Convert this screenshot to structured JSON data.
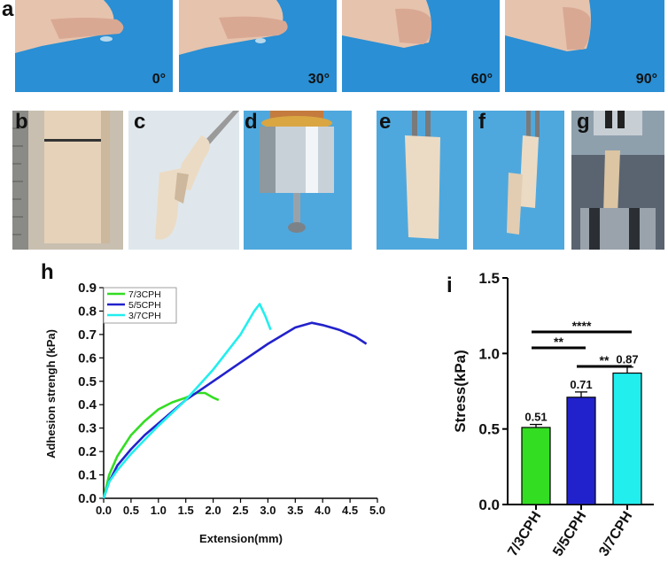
{
  "panels": {
    "a": {
      "label": "a",
      "angles": [
        "0°",
        "30°",
        "60°",
        "90°"
      ]
    },
    "b": {
      "label": "b"
    },
    "c": {
      "label": "c"
    },
    "d": {
      "label": "d"
    },
    "e": {
      "label": "e"
    },
    "f": {
      "label": "f"
    },
    "g": {
      "label": "g"
    },
    "h": {
      "label": "h"
    },
    "i": {
      "label": "i"
    }
  },
  "colors": {
    "series_green": "#33dd22",
    "series_blue": "#2222cc",
    "series_cyan": "#22eeee",
    "photo_blue": "#2a8fd4"
  },
  "chart_data": [
    {
      "type": "line",
      "xlabel": "Extension(mm)",
      "ylabel": "Adhesion strengh (kPa)",
      "xlim": [
        0,
        5.0
      ],
      "ylim": [
        0,
        0.9
      ],
      "xticks": [
        "0.0",
        "0.5",
        "1.0",
        "1.5",
        "2.0",
        "2.5",
        "3.0",
        "3.5",
        "4.0",
        "4.5",
        "5.0"
      ],
      "yticks": [
        "0.0",
        "0.1",
        "0.2",
        "0.3",
        "0.4",
        "0.5",
        "0.6",
        "0.7",
        "0.8",
        "0.9"
      ],
      "legend_position": "top-left",
      "series": [
        {
          "name": "7/3CPH",
          "color": "#33dd22",
          "x": [
            0,
            0.1,
            0.25,
            0.5,
            0.75,
            1.0,
            1.25,
            1.5,
            1.7,
            1.85,
            2.0,
            2.1
          ],
          "y": [
            0,
            0.1,
            0.18,
            0.27,
            0.33,
            0.38,
            0.41,
            0.43,
            0.45,
            0.45,
            0.43,
            0.42
          ]
        },
        {
          "name": "5/5CPH",
          "color": "#2222cc",
          "x": [
            0,
            0.1,
            0.25,
            0.5,
            0.75,
            1.0,
            1.5,
            2.0,
            2.5,
            3.0,
            3.5,
            3.8,
            4.0,
            4.3,
            4.6,
            4.8
          ],
          "y": [
            0,
            0.07,
            0.14,
            0.21,
            0.27,
            0.32,
            0.42,
            0.5,
            0.58,
            0.66,
            0.73,
            0.75,
            0.74,
            0.72,
            0.69,
            0.66
          ]
        },
        {
          "name": "3/7CPH",
          "color": "#22eeee",
          "x": [
            0,
            0.1,
            0.25,
            0.5,
            0.75,
            1.0,
            1.5,
            2.0,
            2.5,
            2.75,
            2.85,
            2.95,
            3.05
          ],
          "y": [
            0,
            0.07,
            0.12,
            0.19,
            0.25,
            0.31,
            0.42,
            0.55,
            0.7,
            0.8,
            0.83,
            0.78,
            0.72
          ]
        }
      ]
    },
    {
      "type": "bar",
      "ylabel": "Stress(kPa)",
      "ylim": [
        0,
        1.5
      ],
      "yticks": [
        "0.0",
        "0.5",
        "1.0",
        "1.5"
      ],
      "categories": [
        "7/3CPH",
        "5/5CPH",
        "3/7CPH"
      ],
      "values": [
        0.51,
        0.71,
        0.87
      ],
      "errors": [
        0.02,
        0.035,
        0.04
      ],
      "value_labels": [
        "0.51",
        "0.71",
        "0.87"
      ],
      "colors": [
        "#33dd22",
        "#2222cc",
        "#22eeee"
      ],
      "significance": [
        {
          "from": 0,
          "to": 2,
          "label": "****"
        },
        {
          "from": 0,
          "to": 1,
          "label": "**"
        },
        {
          "from": 1,
          "to": 2,
          "label": "**"
        }
      ]
    }
  ]
}
